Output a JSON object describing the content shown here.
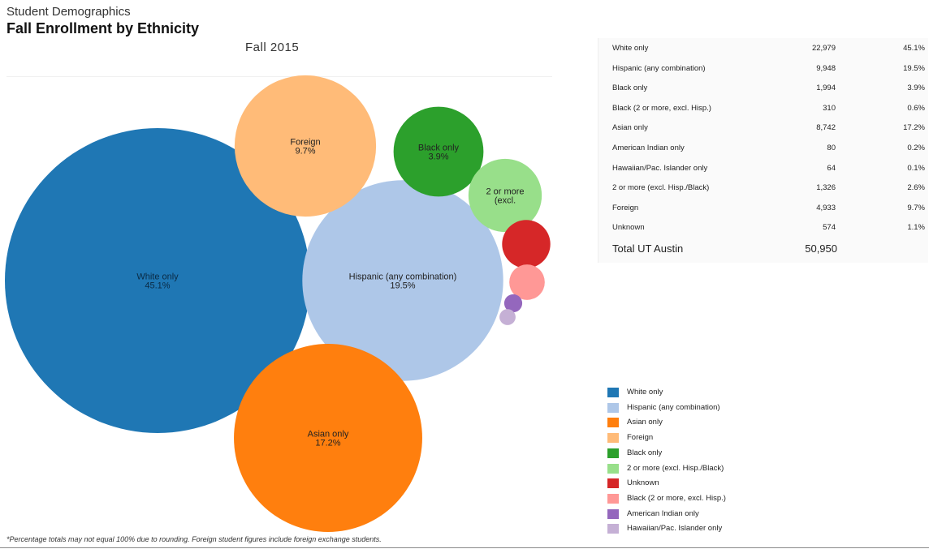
{
  "header": {
    "super_title": "Student Demographics",
    "title": "Fall Enrollment by Ethnicity",
    "subtitle": "Fall 2015"
  },
  "chart_data": {
    "type": "bubble",
    "title": "Fall Enrollment by Ethnicity",
    "subtitle": "Fall 2015",
    "series": [
      {
        "name": "White only",
        "value": 22979,
        "percent": "45.1%",
        "color": "#1f77b4",
        "label_lines": [
          "White only",
          "45.1%"
        ]
      },
      {
        "name": "Hispanic (any combination)",
        "value": 9948,
        "percent": "19.5%",
        "color": "#aec7e8",
        "label_lines": [
          "Hispanic (any combination)",
          "19.5%"
        ]
      },
      {
        "name": "Asian only",
        "value": 8742,
        "percent": "17.2%",
        "color": "#ff7f0e",
        "label_lines": [
          "Asian only",
          "17.2%"
        ]
      },
      {
        "name": "Foreign",
        "value": 4933,
        "percent": "9.7%",
        "color": "#ffbb78",
        "label_lines": [
          "Foreign",
          "9.7%"
        ]
      },
      {
        "name": "Black only",
        "value": 1994,
        "percent": "3.9%",
        "color": "#2ca02c",
        "label_lines": [
          "Black only",
          "3.9%"
        ]
      },
      {
        "name": "2 or more (excl. Hisp./Black)",
        "value": 1326,
        "percent": "2.6%",
        "color": "#98df8a",
        "label_lines": [
          "2 or more",
          "(excl."
        ]
      },
      {
        "name": "Unknown",
        "value": 574,
        "percent": "1.1%",
        "color": "#d62728",
        "label_lines": []
      },
      {
        "name": "Black (2 or more, excl. Hisp.)",
        "value": 310,
        "percent": "0.6%",
        "color": "#ff9896",
        "label_lines": []
      },
      {
        "name": "American Indian only",
        "value": 80,
        "percent": "0.2%",
        "color": "#9467bd",
        "label_lines": []
      },
      {
        "name": "Hawaiian/Pac. Islander only",
        "value": 64,
        "percent": "0.1%",
        "color": "#c5b0d5",
        "label_lines": []
      }
    ]
  },
  "table": {
    "rows": [
      {
        "label": "White only",
        "count": "22,979",
        "pct": "45.1%"
      },
      {
        "label": "Hispanic (any combination)",
        "count": "9,948",
        "pct": "19.5%"
      },
      {
        "label": "Black only",
        "count": "1,994",
        "pct": "3.9%"
      },
      {
        "label": "Black (2 or more, excl. Hisp.)",
        "count": "310",
        "pct": "0.6%"
      },
      {
        "label": "Asian only",
        "count": "8,742",
        "pct": "17.2%"
      },
      {
        "label": "American Indian only",
        "count": "80",
        "pct": "0.2%"
      },
      {
        "label": "Hawaiian/Pac. Islander only",
        "count": "64",
        "pct": "0.1%"
      },
      {
        "label": "2 or more (excl. Hisp./Black)",
        "count": "1,326",
        "pct": "2.6%"
      },
      {
        "label": "Foreign",
        "count": "4,933",
        "pct": "9.7%"
      },
      {
        "label": "Unknown",
        "count": "574",
        "pct": "1.1%"
      }
    ],
    "total_label": "Total UT Austin",
    "total_count": "50,950"
  },
  "legend": {
    "items": [
      {
        "label": "White only",
        "color": "#1f77b4"
      },
      {
        "label": "Hispanic (any combination)",
        "color": "#aec7e8"
      },
      {
        "label": "Asian only",
        "color": "#ff7f0e"
      },
      {
        "label": "Foreign",
        "color": "#ffbb78"
      },
      {
        "label": "Black only",
        "color": "#2ca02c"
      },
      {
        "label": "2 or more (excl. Hisp./Black)",
        "color": "#98df8a"
      },
      {
        "label": "Unknown",
        "color": "#d62728"
      },
      {
        "label": "Black (2 or more, excl. Hisp.)",
        "color": "#ff9896"
      },
      {
        "label": "American Indian only",
        "color": "#9467bd"
      },
      {
        "label": "Hawaiian/Pac. Islander only",
        "color": "#c5b0d5"
      }
    ]
  },
  "footnote": "*Percentage totals may not equal 100% due to rounding. Foreign student figures include foreign exchange students."
}
